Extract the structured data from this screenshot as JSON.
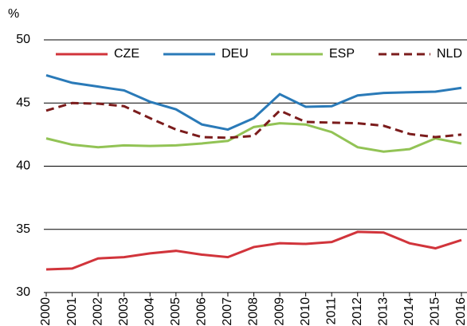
{
  "chart_data": {
    "type": "line",
    "y_unit": "%",
    "x": [
      "2000",
      "2001",
      "2002",
      "2003",
      "2004",
      "2005",
      "2006",
      "2007",
      "2008",
      "2009",
      "2010",
      "2011",
      "2012",
      "2013",
      "2014",
      "2015",
      "2016"
    ],
    "series": [
      {
        "name": "CZE",
        "color": "#d1343b",
        "values": [
          31.83,
          31.9,
          32.7,
          32.8,
          33.1,
          33.3,
          33.0,
          32.8,
          33.6,
          33.9,
          33.85,
          34.0,
          34.8,
          34.75,
          33.9,
          33.5,
          34.15
        ]
      },
      {
        "name": "DEU",
        "color": "#2a7ab8",
        "values": [
          47.2,
          46.6,
          46.3,
          46.0,
          45.1,
          44.5,
          43.3,
          42.9,
          43.8,
          45.7,
          44.7,
          44.75,
          45.6,
          45.8,
          45.85,
          45.9,
          46.2
        ]
      },
      {
        "name": "ESP",
        "color": "#92c355",
        "values": [
          42.2,
          41.7,
          41.5,
          41.65,
          41.6,
          41.65,
          41.8,
          42.0,
          43.1,
          43.4,
          43.3,
          42.7,
          41.5,
          41.15,
          41.35,
          42.2,
          41.8
        ]
      },
      {
        "name": "NLD",
        "color": "#7b1c1c",
        "dashed": true,
        "values": [
          44.4,
          45.0,
          44.95,
          44.75,
          43.8,
          42.9,
          42.3,
          42.25,
          42.4,
          44.4,
          43.5,
          43.45,
          43.4,
          43.2,
          42.55,
          42.3,
          42.5
        ]
      }
    ],
    "ylim": [
      30,
      50
    ],
    "yticks": [
      30,
      35,
      40,
      45,
      50
    ],
    "grid": true,
    "legend": "top"
  }
}
